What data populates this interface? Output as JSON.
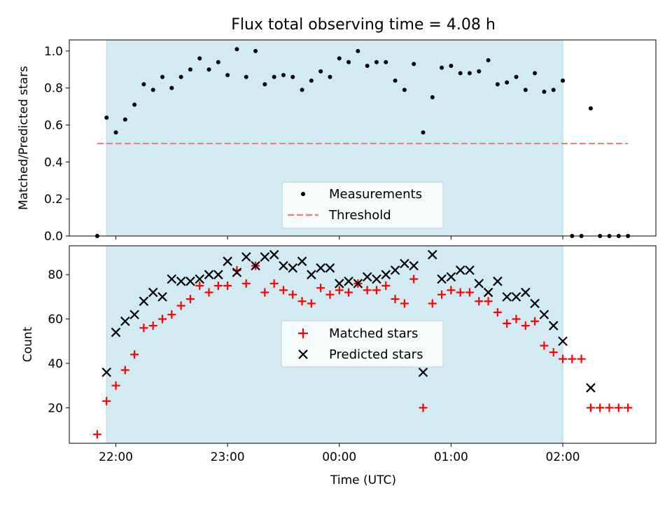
{
  "figure": {
    "title": "Flux total observing time = 4.08 h",
    "xlabel": "Time (UTC)",
    "x_ticks": [
      {
        "label": "22:00",
        "minutes": 0
      },
      {
        "label": "23:00",
        "minutes": 60
      },
      {
        "label": "00:00",
        "minutes": 120
      },
      {
        "label": "01:00",
        "minutes": 180
      },
      {
        "label": "02:00",
        "minutes": 240
      }
    ],
    "x_range_minutes": [
      -25,
      290
    ],
    "shade_span_minutes": [
      -5,
      240
    ],
    "shade_color": "#add8e6"
  },
  "chart_data": [
    {
      "type": "scatter",
      "ylabel": "Matched/Predicted stars",
      "ylim": [
        0,
        1.06
      ],
      "yticks": [
        "0.0",
        "0.2",
        "0.4",
        "0.6",
        "0.8",
        "1.0"
      ],
      "legend": {
        "placement": "lower-center",
        "entries": [
          "Measurements",
          "Threshold"
        ]
      },
      "threshold": {
        "name": "Threshold",
        "value": 0.5,
        "x_start": -10,
        "x_end": 275,
        "color": "#f08080"
      },
      "series": [
        {
          "name": "Measurements",
          "color": "#000000",
          "x": [
            -10,
            -5,
            0,
            5,
            10,
            15,
            20,
            25,
            30,
            35,
            40,
            45,
            50,
            55,
            60,
            65,
            70,
            75,
            80,
            85,
            90,
            95,
            100,
            105,
            110,
            115,
            120,
            125,
            130,
            135,
            140,
            145,
            150,
            155,
            160,
            165,
            170,
            175,
            180,
            185,
            190,
            195,
            200,
            205,
            210,
            215,
            220,
            225,
            230,
            235,
            240,
            245,
            250,
            255,
            260,
            265,
            270,
            275
          ],
          "y": [
            0.0,
            0.64,
            0.56,
            0.63,
            0.71,
            0.82,
            0.79,
            0.86,
            0.8,
            0.86,
            0.9,
            0.96,
            0.9,
            0.94,
            0.87,
            1.01,
            0.86,
            1.0,
            0.82,
            0.86,
            0.87,
            0.86,
            0.79,
            0.84,
            0.89,
            0.86,
            0.96,
            0.94,
            1.0,
            0.92,
            0.94,
            0.94,
            0.84,
            0.79,
            0.93,
            0.56,
            0.75,
            0.91,
            0.92,
            0.88,
            0.88,
            0.89,
            0.95,
            0.82,
            0.83,
            0.86,
            0.79,
            0.88,
            0.78,
            0.79,
            0.84,
            0.0,
            0.0,
            0.69,
            0.0,
            0.0,
            0.0,
            0.0
          ]
        }
      ]
    },
    {
      "type": "scatter",
      "ylabel": "Count",
      "ylim": [
        4,
        93
      ],
      "yticks": [
        "20",
        "40",
        "60",
        "80"
      ],
      "legend": {
        "placement": "center",
        "entries": [
          "Matched stars",
          "Predicted stars"
        ]
      },
      "series": [
        {
          "name": "Matched stars",
          "marker": "plus",
          "color": "#ff0000",
          "x": [
            -10,
            -5,
            0,
            5,
            10,
            15,
            20,
            25,
            30,
            35,
            40,
            45,
            50,
            55,
            60,
            65,
            70,
            75,
            80,
            85,
            90,
            95,
            100,
            105,
            110,
            115,
            120,
            125,
            130,
            135,
            140,
            145,
            150,
            155,
            160,
            165,
            170,
            175,
            180,
            185,
            190,
            195,
            200,
            205,
            210,
            215,
            220,
            225,
            230,
            235,
            240,
            245,
            250,
            255,
            260,
            265,
            270,
            275
          ],
          "y": [
            8,
            23,
            30,
            37,
            44,
            56,
            57,
            60,
            62,
            66,
            69,
            75,
            72,
            75,
            75,
            82,
            76,
            84,
            72,
            76,
            73,
            71,
            68,
            67,
            74,
            71,
            73,
            72,
            76,
            73,
            73,
            75,
            69,
            67,
            78,
            20,
            67,
            71,
            73,
            72,
            72,
            68,
            68,
            63,
            58,
            60,
            57,
            59,
            48,
            45,
            42,
            42,
            42,
            20,
            20,
            20,
            20,
            20
          ]
        },
        {
          "name": "Predicted stars",
          "marker": "cross",
          "color": "#000000",
          "x": [
            -5,
            0,
            5,
            10,
            15,
            20,
            25,
            30,
            35,
            40,
            45,
            50,
            55,
            60,
            65,
            70,
            75,
            80,
            85,
            90,
            95,
            100,
            105,
            110,
            115,
            120,
            125,
            130,
            135,
            140,
            145,
            150,
            155,
            160,
            165,
            170,
            175,
            180,
            185,
            190,
            195,
            200,
            205,
            210,
            215,
            220,
            225,
            230,
            235,
            240,
            255
          ],
          "y": [
            36,
            54,
            59,
            62,
            68,
            72,
            70,
            78,
            77,
            77,
            78,
            80,
            80,
            86,
            81,
            88,
            84,
            88,
            89,
            84,
            83,
            86,
            80,
            83,
            83,
            76,
            77,
            76,
            79,
            78,
            80,
            82,
            85,
            84,
            36,
            89,
            78,
            79,
            82,
            82,
            76,
            72,
            77,
            70,
            70,
            72,
            67,
            62,
            57,
            50,
            29
          ]
        }
      ]
    }
  ]
}
